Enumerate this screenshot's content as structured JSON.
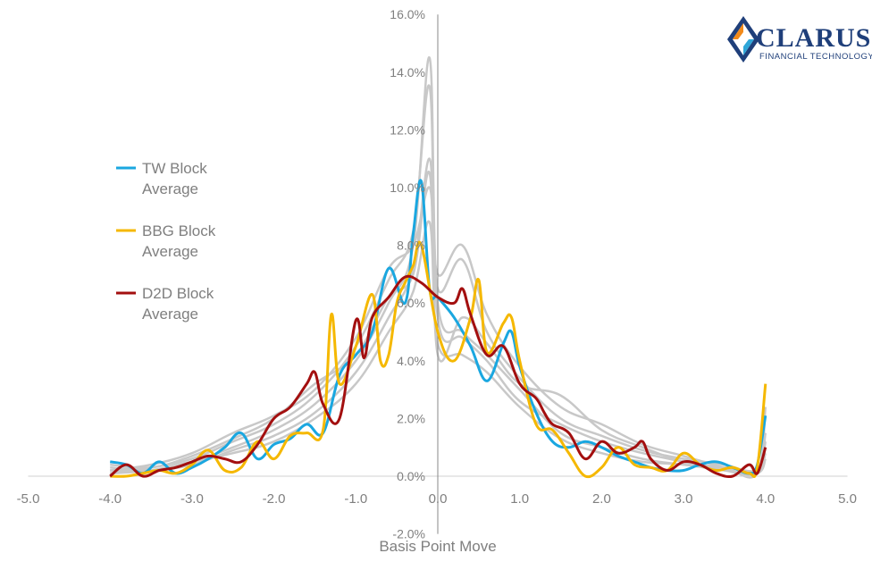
{
  "logo": {
    "name": "CLARUS",
    "tagline": "FINANCIAL TECHNOLOGY"
  },
  "chart_data": {
    "type": "line",
    "xlabel": "Basis Point Move",
    "ylabel": "",
    "xlim": [
      -5.0,
      5.0
    ],
    "ylim": [
      -2.0,
      16.0
    ],
    "x_ticks": [
      "-5.0",
      "-4.0",
      "-3.0",
      "-2.0",
      "-1.0",
      "0.0",
      "1.0",
      "2.0",
      "3.0",
      "4.0",
      "5.0"
    ],
    "y_ticks": [
      "-2.0%",
      "0.0%",
      "2.0%",
      "4.0%",
      "6.0%",
      "8.0%",
      "10.0%",
      "12.0%",
      "14.0%",
      "16.0%"
    ],
    "grid": false,
    "legend_position": "left",
    "background_series_color": "#c8c8c8",
    "background_series": [
      {
        "x": [
          -4.0,
          -3.5,
          -3.0,
          -2.5,
          -2.0,
          -1.5,
          -1.0,
          -0.6,
          -0.3,
          -0.1,
          0.0,
          0.3,
          0.6,
          1.0,
          1.5,
          2.0,
          2.5,
          3.0,
          3.5,
          3.9,
          4.0
        ],
        "y": [
          0.2,
          0.2,
          0.5,
          1.0,
          1.6,
          2.5,
          4.0,
          6.0,
          8.0,
          14.5,
          6.0,
          5.0,
          4.2,
          3.0,
          1.5,
          1.0,
          0.6,
          0.4,
          0.3,
          0.2,
          0.8
        ]
      },
      {
        "x": [
          -4.0,
          -3.5,
          -3.0,
          -2.5,
          -2.0,
          -1.5,
          -1.0,
          -0.6,
          -0.3,
          -0.1,
          0.0,
          0.3,
          0.6,
          1.0,
          1.5,
          2.0,
          2.5,
          3.0,
          3.5,
          3.9,
          4.0
        ],
        "y": [
          0.1,
          0.3,
          0.6,
          1.2,
          1.8,
          2.8,
          4.5,
          6.8,
          8.5,
          13.5,
          5.5,
          4.8,
          4.0,
          2.6,
          1.8,
          1.2,
          0.8,
          0.5,
          0.2,
          0.1,
          1.2
        ]
      },
      {
        "x": [
          -4.0,
          -3.5,
          -3.0,
          -2.5,
          -2.0,
          -1.5,
          -1.0,
          -0.6,
          -0.3,
          -0.1,
          0.0,
          0.3,
          0.6,
          1.0,
          1.5,
          2.0,
          2.5,
          3.0,
          3.5,
          3.9,
          4.0
        ],
        "y": [
          0.3,
          0.2,
          0.4,
          0.9,
          1.4,
          2.2,
          3.6,
          5.5,
          7.2,
          11.0,
          6.5,
          7.5,
          5.0,
          3.4,
          2.0,
          1.4,
          0.9,
          0.6,
          0.4,
          0.2,
          1.5
        ]
      },
      {
        "x": [
          -4.0,
          -3.5,
          -3.0,
          -2.5,
          -2.0,
          -1.5,
          -1.0,
          -0.6,
          -0.3,
          -0.1,
          0.0,
          0.3,
          0.6,
          1.0,
          1.5,
          2.0,
          2.5,
          3.0,
          3.5,
          3.9,
          4.0
        ],
        "y": [
          0.2,
          0.4,
          0.8,
          1.5,
          2.1,
          3.0,
          4.8,
          7.2,
          8.0,
          10.0,
          7.0,
          8.0,
          5.6,
          3.8,
          2.4,
          1.8,
          1.1,
          0.7,
          0.3,
          0.1,
          2.4
        ]
      },
      {
        "x": [
          -4.0,
          -3.5,
          -3.0,
          -2.5,
          -2.0,
          -1.5,
          -1.0,
          -0.6,
          -0.3,
          -0.1,
          0.0,
          0.3,
          0.6,
          1.0,
          1.5,
          2.0,
          2.5,
          3.0,
          3.5,
          3.9,
          4.0
        ],
        "y": [
          0.1,
          0.2,
          0.5,
          0.8,
          1.2,
          2.0,
          3.2,
          5.0,
          6.4,
          8.8,
          4.6,
          4.2,
          3.6,
          2.4,
          1.3,
          0.8,
          0.5,
          0.4,
          0.2,
          0.1,
          0.6
        ]
      },
      {
        "x": [
          -4.0,
          -3.5,
          -3.0,
          -2.5,
          -2.0,
          -1.5,
          -1.0,
          -0.6,
          -0.3,
          -0.1,
          0.0,
          0.3,
          0.6,
          1.0,
          1.5,
          2.0,
          2.5,
          3.0,
          3.5,
          3.9,
          4.0
        ],
        "y": [
          0.4,
          0.3,
          0.7,
          1.3,
          2.0,
          3.2,
          4.2,
          6.2,
          7.0,
          10.5,
          4.2,
          5.5,
          4.6,
          3.2,
          2.8,
          1.6,
          1.0,
          0.5,
          0.3,
          0.2,
          1.0
        ]
      }
    ],
    "series": [
      {
        "name": "TW Block Average",
        "color": "#1aa7e0",
        "x": [
          -4.0,
          -3.8,
          -3.6,
          -3.4,
          -3.2,
          -3.0,
          -2.8,
          -2.6,
          -2.4,
          -2.2,
          -2.0,
          -1.8,
          -1.6,
          -1.4,
          -1.2,
          -1.0,
          -0.8,
          -0.6,
          -0.4,
          -0.3,
          -0.2,
          -0.1,
          0.0,
          0.2,
          0.4,
          0.6,
          0.8,
          0.9,
          1.0,
          1.2,
          1.4,
          1.6,
          1.8,
          2.0,
          2.2,
          2.4,
          2.6,
          2.8,
          3.0,
          3.2,
          3.4,
          3.6,
          3.8,
          3.9,
          4.0
        ],
        "y": [
          0.5,
          0.4,
          0.1,
          0.5,
          0.1,
          0.3,
          0.6,
          1.0,
          1.5,
          0.6,
          1.1,
          1.3,
          1.8,
          1.5,
          3.5,
          4.2,
          5.0,
          7.2,
          6.0,
          8.4,
          10.2,
          6.5,
          6.2,
          5.5,
          4.5,
          3.3,
          4.6,
          5.0,
          3.8,
          2.2,
          1.2,
          1.0,
          1.2,
          1.0,
          0.7,
          0.5,
          0.3,
          0.2,
          0.2,
          0.4,
          0.5,
          0.3,
          0.1,
          0.4,
          2.1
        ]
      },
      {
        "name": "BBG Block Average",
        "color": "#f5b800",
        "x": [
          -4.0,
          -3.8,
          -3.6,
          -3.4,
          -3.2,
          -3.0,
          -2.8,
          -2.6,
          -2.4,
          -2.2,
          -2.0,
          -1.8,
          -1.6,
          -1.4,
          -1.3,
          -1.2,
          -1.0,
          -0.8,
          -0.7,
          -0.6,
          -0.5,
          -0.4,
          -0.3,
          -0.2,
          0.0,
          0.2,
          0.4,
          0.5,
          0.6,
          0.8,
          0.9,
          1.0,
          1.2,
          1.4,
          1.6,
          1.8,
          2.0,
          2.2,
          2.4,
          2.6,
          2.8,
          3.0,
          3.2,
          3.4,
          3.6,
          3.8,
          3.9,
          4.0
        ],
        "y": [
          0.0,
          0.0,
          0.1,
          0.2,
          0.1,
          0.4,
          0.9,
          0.2,
          0.3,
          1.2,
          0.6,
          1.4,
          1.5,
          1.6,
          5.6,
          3.2,
          4.5,
          6.3,
          4.0,
          4.2,
          6.0,
          6.7,
          7.3,
          8.0,
          5.0,
          4.0,
          5.5,
          6.8,
          4.3,
          5.3,
          5.5,
          4.0,
          1.8,
          1.6,
          0.8,
          0.0,
          0.3,
          1.0,
          0.4,
          0.3,
          0.2,
          0.8,
          0.4,
          0.2,
          0.3,
          0.1,
          0.3,
          3.2
        ]
      },
      {
        "name": "D2D Block Average",
        "color": "#a30f0f",
        "x": [
          -4.0,
          -3.8,
          -3.6,
          -3.4,
          -3.2,
          -3.0,
          -2.8,
          -2.6,
          -2.4,
          -2.2,
          -2.0,
          -1.8,
          -1.6,
          -1.5,
          -1.4,
          -1.2,
          -1.0,
          -0.9,
          -0.8,
          -0.6,
          -0.4,
          -0.2,
          0.0,
          0.2,
          0.3,
          0.4,
          0.6,
          0.8,
          1.0,
          1.2,
          1.3,
          1.4,
          1.6,
          1.8,
          2.0,
          2.2,
          2.4,
          2.5,
          2.6,
          2.8,
          3.0,
          3.2,
          3.4,
          3.6,
          3.8,
          3.9,
          4.0
        ],
        "y": [
          0.0,
          0.4,
          0.0,
          0.2,
          0.3,
          0.5,
          0.7,
          0.6,
          0.5,
          1.1,
          2.0,
          2.4,
          3.2,
          3.6,
          2.5,
          2.0,
          5.4,
          4.1,
          5.5,
          6.2,
          6.9,
          6.7,
          6.2,
          6.0,
          6.5,
          5.6,
          4.2,
          4.5,
          3.2,
          2.7,
          2.2,
          1.8,
          1.5,
          0.6,
          1.2,
          0.8,
          1.0,
          1.2,
          0.6,
          0.2,
          0.5,
          0.4,
          0.1,
          0.0,
          0.4,
          0.1,
          1.0
        ]
      }
    ]
  }
}
